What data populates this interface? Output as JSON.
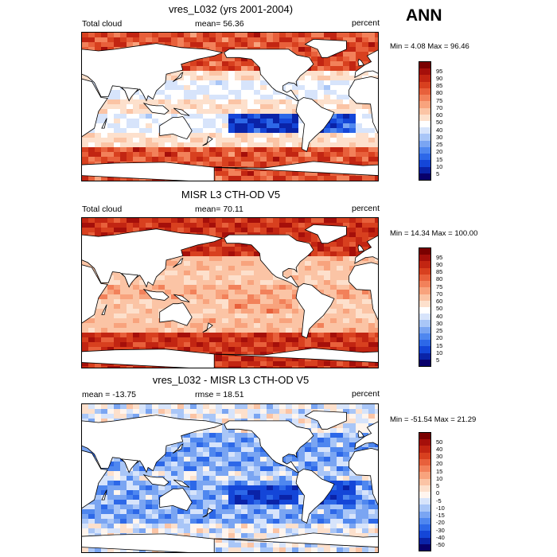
{
  "season": "ANN",
  "colors": {
    "seq": [
      "#08006b",
      "#0a23a8",
      "#1446d8",
      "#2d68e8",
      "#4f87ef",
      "#7aa5f2",
      "#a9c6f7",
      "#d7e4fb",
      "#ffffff",
      "#fde0cc",
      "#fbc4a5",
      "#f8a37d",
      "#f2815a",
      "#e8603b",
      "#d8401f",
      "#c22512",
      "#a50f0a",
      "#7a0000"
    ],
    "diff": [
      "#08006b",
      "#0a23a8",
      "#1446d8",
      "#2d68e8",
      "#4f87ef",
      "#7aa5f2",
      "#a9c6f7",
      "#d7e4fb",
      "#fff5ee",
      "#fde0cc",
      "#fbc4a5",
      "#f8a37d",
      "#f2815a",
      "#e8603b",
      "#d8401f",
      "#c22512",
      "#a50f0a",
      "#7a0000"
    ]
  },
  "panels": [
    {
      "title": "vres_L032 (yrs 2001-2004)",
      "left_label": "Total cloud",
      "center_label": "mean=  56.36",
      "right_label": "percent",
      "minmax": "Min =   4.08 Max =  96.46",
      "levels": [
        "95",
        "90",
        "85",
        "80",
        "75",
        "70",
        "60",
        "50",
        "40",
        "30",
        "25",
        "20",
        "15",
        "10",
        "5"
      ]
    },
    {
      "title": "MISR L3 CTH-OD V5",
      "left_label": "Total cloud",
      "center_label": "mean=  70.11",
      "right_label": "percent",
      "minmax": "Min =  14.34 Max = 100.00",
      "levels": [
        "95",
        "90",
        "85",
        "80",
        "75",
        "70",
        "60",
        "50",
        "40",
        "30",
        "25",
        "20",
        "15",
        "10",
        "5"
      ]
    },
    {
      "title": "vres_L032 - MISR L3 CTH-OD V5",
      "left_label": "mean = -13.75",
      "center_label": "rmse =  18.51",
      "right_label": "percent",
      "minmax": "Min = -51.54 Max =  21.29",
      "levels": [
        "50",
        "40",
        "30",
        "20",
        "15",
        "10",
        "5",
        "0",
        "-5",
        "-10",
        "-15",
        "-20",
        "-30",
        "-40",
        "-50"
      ]
    }
  ],
  "chart_data": [
    {
      "type": "heatmap",
      "title": "vres_L032 (yrs 2001-2004)",
      "field": "Total cloud",
      "units": "percent",
      "mean": 56.36,
      "min": 4.08,
      "max": 96.46,
      "colorbar_levels": [
        5,
        10,
        15,
        20,
        25,
        30,
        40,
        50,
        60,
        70,
        75,
        80,
        85,
        90,
        95
      ]
    },
    {
      "type": "heatmap",
      "title": "MISR L3 CTH-OD V5",
      "field": "Total cloud",
      "units": "percent",
      "mean": 70.11,
      "min": 14.34,
      "max": 100.0,
      "colorbar_levels": [
        5,
        10,
        15,
        20,
        25,
        30,
        40,
        50,
        60,
        70,
        75,
        80,
        85,
        90,
        95
      ]
    },
    {
      "type": "heatmap",
      "title": "vres_L032 - MISR L3 CTH-OD V5",
      "units": "percent",
      "mean": -13.75,
      "rmse": 18.51,
      "min": -51.54,
      "max": 21.29,
      "colorbar_levels": [
        -50,
        -40,
        -30,
        -20,
        -15,
        -10,
        -5,
        0,
        5,
        10,
        15,
        20,
        30,
        40,
        50
      ]
    }
  ]
}
